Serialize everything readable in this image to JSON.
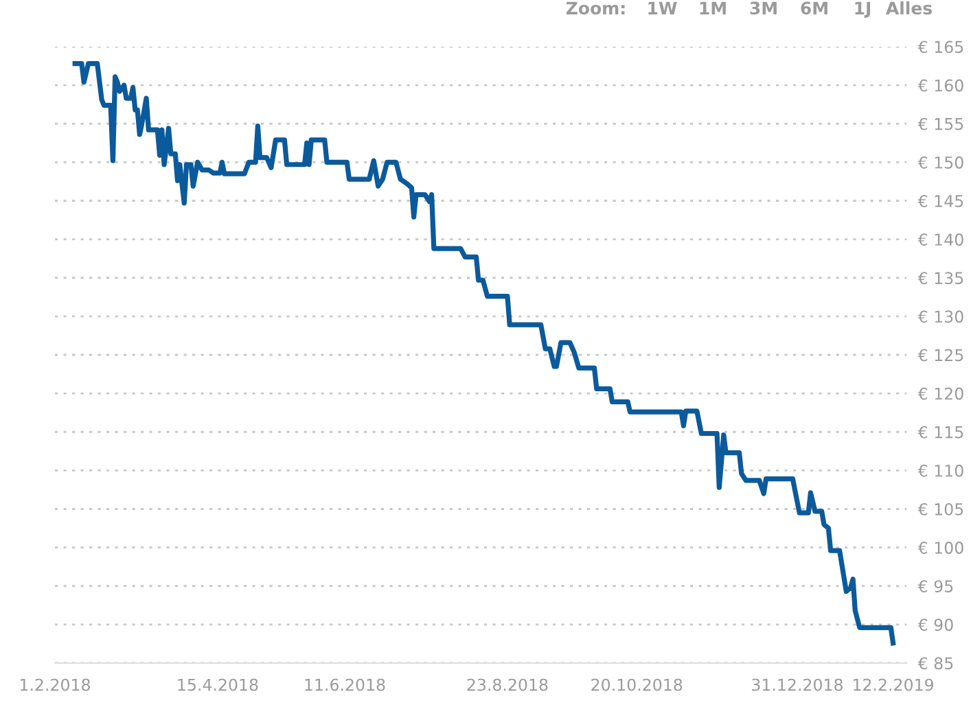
{
  "chart_data": {
    "type": "line",
    "line_style": "solid",
    "marker": "none",
    "grid": "y",
    "legend": false,
    "annotations": [
      "Zoom:",
      "1W",
      "1M",
      "3M",
      "6M",
      "1J",
      "Alles"
    ],
    "xlim": [
      "2018-02-01",
      "2019-02-18"
    ],
    "ylim": [
      85,
      165
    ],
    "xticks": [
      {
        "value": "2018-02-01",
        "label": "1.2.2018"
      },
      {
        "value": "2018-04-15",
        "label": "15.4.2018"
      },
      {
        "value": "2018-06-11",
        "label": "11.6.2018"
      },
      {
        "value": "2018-08-23",
        "label": "23.8.2018"
      },
      {
        "value": "2018-10-20",
        "label": "20.10.2018"
      },
      {
        "value": "2018-12-31",
        "label": "31.12.2018"
      },
      {
        "value": "2019-02-12",
        "label": "12.2.2019"
      }
    ],
    "yticks": [
      {
        "value": 85,
        "label": "€ 85"
      },
      {
        "value": 90,
        "label": "€ 90"
      },
      {
        "value": 95,
        "label": "€ 95"
      },
      {
        "value": 100,
        "label": "€ 100"
      },
      {
        "value": 105,
        "label": "€ 105"
      },
      {
        "value": 110,
        "label": "€ 110"
      },
      {
        "value": 115,
        "label": "€ 115"
      },
      {
        "value": 120,
        "label": "€ 120"
      },
      {
        "value": 125,
        "label": "€ 125"
      },
      {
        "value": 130,
        "label": "€ 130"
      },
      {
        "value": 135,
        "label": "€ 135"
      },
      {
        "value": 140,
        "label": "€ 140"
      },
      {
        "value": 145,
        "label": "€ 145"
      },
      {
        "value": 150,
        "label": "€ 150"
      },
      {
        "value": 155,
        "label": "€ 155"
      },
      {
        "value": 160,
        "label": "€ 160"
      },
      {
        "value": 165,
        "label": "€ 165"
      }
    ],
    "series": [
      {
        "color": "#0b5a9c",
        "x": [
          "2018-02-10",
          "2018-02-13",
          "2018-02-14",
          "2018-02-16",
          "2018-02-20",
          "2018-02-22",
          "2018-02-23",
          "2018-02-26",
          "2018-02-27",
          "2018-02-28",
          "2018-03-01",
          "2018-03-02",
          "2018-03-04",
          "2018-03-05",
          "2018-03-07",
          "2018-03-08",
          "2018-03-09",
          "2018-03-10",
          "2018-03-11",
          "2018-03-12",
          "2018-03-14",
          "2018-03-15",
          "2018-03-19",
          "2018-03-20",
          "2018-03-21",
          "2018-03-22",
          "2018-03-24",
          "2018-03-25",
          "2018-03-27",
          "2018-03-28",
          "2018-03-29",
          "2018-03-31",
          "2018-04-01",
          "2018-04-03",
          "2018-04-04",
          "2018-04-06",
          "2018-04-08",
          "2018-04-11",
          "2018-04-13",
          "2018-04-16",
          "2018-04-17",
          "2018-04-18",
          "2018-04-27",
          "2018-04-29",
          "2018-05-02",
          "2018-05-03",
          "2018-05-04",
          "2018-05-07",
          "2018-05-09",
          "2018-05-11",
          "2018-05-15",
          "2018-05-16",
          "2018-05-24",
          "2018-05-25",
          "2018-05-26",
          "2018-05-27",
          "2018-06-02",
          "2018-06-03",
          "2018-06-12",
          "2018-06-13",
          "2018-06-22",
          "2018-06-24",
          "2018-06-26",
          "2018-06-28",
          "2018-06-30",
          "2018-07-04",
          "2018-07-06",
          "2018-07-09",
          "2018-07-11",
          "2018-07-12",
          "2018-07-13",
          "2018-07-17",
          "2018-07-19",
          "2018-07-20",
          "2018-07-21",
          "2018-08-02",
          "2018-08-04",
          "2018-08-09",
          "2018-08-10",
          "2018-08-12",
          "2018-08-14",
          "2018-08-23",
          "2018-08-24",
          "2018-09-07",
          "2018-09-09",
          "2018-09-11",
          "2018-09-13",
          "2018-09-14",
          "2018-09-16",
          "2018-09-20",
          "2018-09-22",
          "2018-09-24",
          "2018-10-01",
          "2018-10-02",
          "2018-10-08",
          "2018-10-09",
          "2018-10-16",
          "2018-10-17",
          "2018-11-09",
          "2018-11-10",
          "2018-11-11",
          "2018-11-16",
          "2018-11-18",
          "2018-11-25",
          "2018-11-26",
          "2018-11-28",
          "2018-11-29",
          "2018-12-05",
          "2018-12-06",
          "2018-12-08",
          "2018-12-14",
          "2018-12-16",
          "2018-12-17",
          "2018-12-29",
          "2018-12-30",
          "2019-01-01",
          "2019-01-05",
          "2019-01-06",
          "2019-01-08",
          "2019-01-11",
          "2019-01-12",
          "2019-01-14",
          "2019-01-15",
          "2019-01-19",
          "2019-01-22",
          "2019-01-24",
          "2019-01-25",
          "2019-01-26",
          "2019-01-28",
          "2019-02-11",
          "2019-02-12"
        ],
        "values": [
          162.8,
          162.8,
          160.4,
          162.8,
          162.8,
          158.1,
          157.4,
          157.4,
          150.2,
          161.1,
          160.4,
          159.2,
          160,
          158.3,
          158.3,
          159.7,
          156.8,
          156.8,
          153.6,
          155,
          158.3,
          154.2,
          154.2,
          150.9,
          154.2,
          149.7,
          154.4,
          151.1,
          151.1,
          147.6,
          149.7,
          144.7,
          149.7,
          149.7,
          146.9,
          150,
          149,
          149,
          148.6,
          148.6,
          150,
          148.5,
          148.5,
          150,
          150,
          154.7,
          150.6,
          150.6,
          149.3,
          152.9,
          152.9,
          149.7,
          149.7,
          152.5,
          149.7,
          152.9,
          152.9,
          150,
          150,
          147.8,
          147.8,
          150.2,
          146.9,
          147.8,
          150,
          150,
          147.8,
          147.2,
          146.7,
          142.9,
          145.8,
          145.8,
          144.9,
          145.8,
          138.8,
          138.8,
          137.7,
          137.7,
          134.7,
          134.7,
          132.6,
          132.6,
          128.9,
          128.9,
          125.8,
          125.8,
          123.5,
          123.5,
          126.6,
          126.6,
          125.3,
          123.3,
          123.3,
          120.6,
          120.6,
          118.9,
          118.9,
          117.6,
          117.6,
          115.8,
          117.7,
          117.7,
          114.8,
          114.8,
          107.8,
          114.6,
          112.3,
          112.3,
          109.6,
          108.7,
          108.7,
          107,
          108.9,
          108.9,
          107.4,
          104.5,
          104.5,
          107.1,
          104.7,
          104.7,
          103,
          102.5,
          99.6,
          99.6,
          94.3,
          94.8,
          95.9,
          91.8,
          89.6,
          89.6,
          87.6
        ]
      }
    ]
  }
}
